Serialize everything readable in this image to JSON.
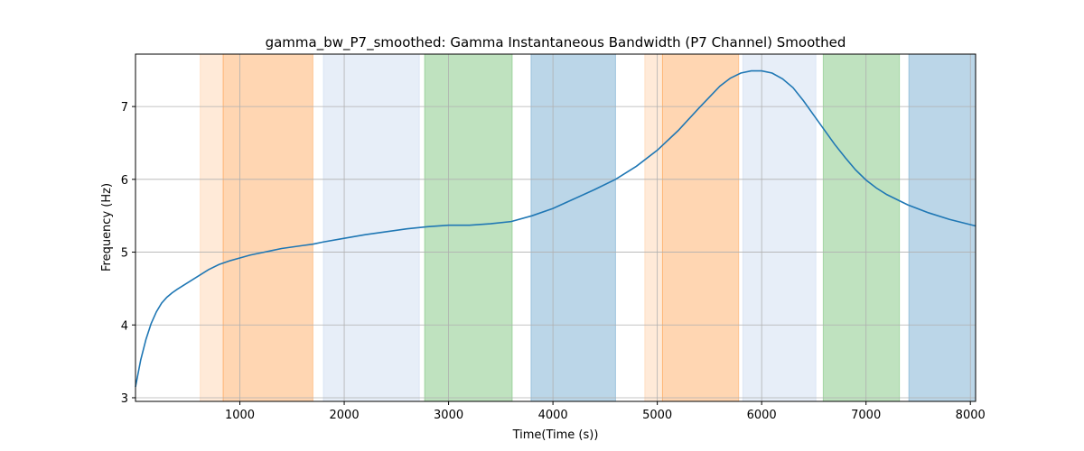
{
  "chart_data": {
    "type": "line",
    "title": "gamma_bw_P7_smoothed: Gamma Instantaneous Bandwidth (P7 Channel) Smoothed",
    "xlabel": "Time(Time (s))",
    "ylabel": "Frequency (Hz)",
    "xlim": [
      0,
      8050
    ],
    "ylim": [
      2.95,
      7.72
    ],
    "xticks": [
      1000,
      2000,
      3000,
      4000,
      5000,
      6000,
      7000,
      8000
    ],
    "yticks": [
      3,
      4,
      5,
      6,
      7
    ],
    "grid": true,
    "line_color": "#1f77b4",
    "series": [
      {
        "x": [
          0,
          50,
          100,
          150,
          200,
          250,
          300,
          350,
          400,
          500,
          600,
          700,
          800,
          900,
          1000,
          1100,
          1200,
          1300,
          1400,
          1500,
          1600,
          1700,
          1800,
          2000,
          2200,
          2400,
          2600,
          2800,
          3000,
          3200,
          3400,
          3600,
          3800,
          4000,
          4200,
          4400,
          4600,
          4800,
          5000,
          5200,
          5400,
          5600,
          5700,
          5800,
          5900,
          6000,
          6100,
          6200,
          6300,
          6400,
          6500,
          6600,
          6700,
          6800,
          6900,
          7000,
          7100,
          7200,
          7400,
          7600,
          7800,
          8050
        ],
        "y": [
          3.15,
          3.52,
          3.8,
          4.02,
          4.18,
          4.3,
          4.38,
          4.44,
          4.49,
          4.58,
          4.67,
          4.76,
          4.83,
          4.88,
          4.92,
          4.96,
          4.99,
          5.02,
          5.05,
          5.07,
          5.09,
          5.11,
          5.14,
          5.19,
          5.24,
          5.28,
          5.32,
          5.35,
          5.37,
          5.37,
          5.39,
          5.42,
          5.5,
          5.6,
          5.73,
          5.86,
          6.0,
          6.18,
          6.4,
          6.67,
          6.98,
          7.28,
          7.39,
          7.46,
          7.49,
          7.49,
          7.46,
          7.38,
          7.26,
          7.08,
          6.88,
          6.68,
          6.48,
          6.3,
          6.13,
          5.99,
          5.88,
          5.79,
          5.65,
          5.54,
          5.45,
          5.36
        ]
      }
    ],
    "bands": [
      {
        "x0": 620,
        "x1": 840,
        "color": "#ff7f0e",
        "alpha": 0.16
      },
      {
        "x0": 840,
        "x1": 1700,
        "color": "#ff7f0e",
        "alpha": 0.32
      },
      {
        "x0": 1800,
        "x1": 2720,
        "color": "#aec7e8",
        "alpha": 0.3
      },
      {
        "x0": 2770,
        "x1": 3610,
        "color": "#2ca02c",
        "alpha": 0.3
      },
      {
        "x0": 3790,
        "x1": 4600,
        "color": "#1f77b4",
        "alpha": 0.3
      },
      {
        "x0": 4880,
        "x1": 5050,
        "color": "#ff7f0e",
        "alpha": 0.16
      },
      {
        "x0": 5050,
        "x1": 5780,
        "color": "#ff7f0e",
        "alpha": 0.32
      },
      {
        "x0": 5820,
        "x1": 6520,
        "color": "#aec7e8",
        "alpha": 0.3
      },
      {
        "x0": 6590,
        "x1": 7320,
        "color": "#2ca02c",
        "alpha": 0.3
      },
      {
        "x0": 7410,
        "x1": 8050,
        "color": "#1f77b4",
        "alpha": 0.3
      }
    ]
  }
}
